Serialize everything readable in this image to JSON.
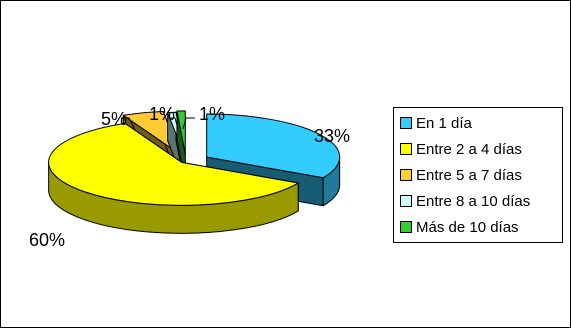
{
  "chart_data": {
    "type": "pie",
    "three_d": true,
    "exploded": true,
    "categories": [
      "En 1 día",
      "Entre 2 a 4 días",
      "Entre 5 a 7 días",
      "Entre 8 a 10 días",
      "Más de 10 días"
    ],
    "values": [
      33,
      60,
      5,
      1,
      1
    ],
    "data_labels": [
      "33%",
      "60%",
      "5%",
      "1%",
      "1%"
    ],
    "colors": [
      "#33CCFF",
      "#FFFF00",
      "#FFCC33",
      "#CCFFFF",
      "#33CC33"
    ],
    "legend_position": "right"
  }
}
